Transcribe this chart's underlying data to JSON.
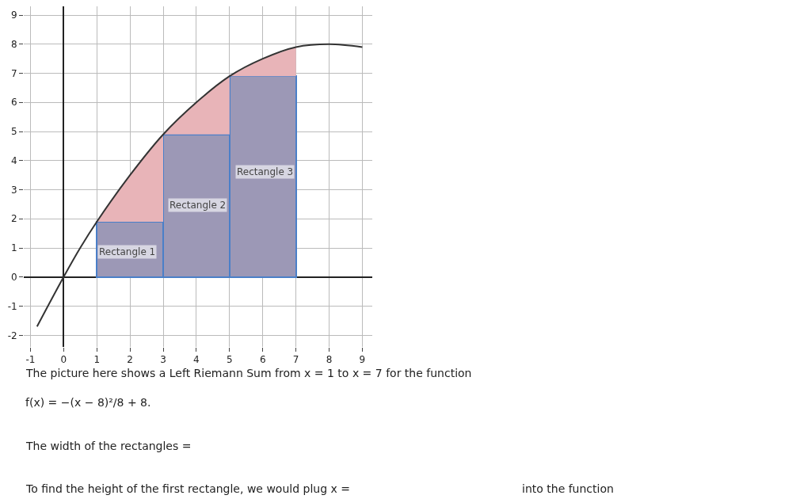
{
  "chart_data": {
    "type": "bar",
    "x": [
      2,
      4,
      6
    ],
    "series": [
      {
        "type": "area",
        "color": "#e8b4b8",
        "x": [
          1,
          1.5,
          2,
          2.5,
          3,
          3.5,
          4,
          4.5,
          5,
          5.5,
          6,
          6.5,
          7
        ],
        "values": [
          1.9,
          2.7,
          3.5,
          4.2,
          4.9,
          5.5,
          6,
          6.5,
          6.9,
          7.2,
          7.5,
          7.7,
          7.9
        ]
      },
      {
        "color": "#9c98b6",
        "values": [
          1.9,
          4.9,
          6.9
        ]
      },
      {
        "type": "line",
        "color": "#333333",
        "x": [
          -0.8,
          0,
          0.5,
          1,
          2,
          3,
          4,
          5,
          6,
          7,
          8,
          9
        ],
        "values": [
          -1.7,
          0,
          1,
          1.9,
          3.5,
          4.9,
          6,
          6.9,
          7.5,
          7.9,
          8,
          7.9
        ]
      }
    ],
    "xlim": [
      -1.2,
      9.3
    ],
    "ylim": [
      -2.4,
      9.3
    ],
    "xticks": [
      -1,
      0,
      1,
      2,
      3,
      4,
      5,
      6,
      7,
      8,
      9
    ],
    "yticks": [
      -2,
      -1,
      0,
      1,
      2,
      3,
      4,
      5,
      6,
      7,
      8,
      9
    ],
    "grid": true,
    "marker": "none",
    "line_style": "solid",
    "annotations": [
      "Rectangle 1",
      "Rectangle 2",
      "Rectangle 3",
      "The picture here shows a Left Riemann Sum from x = 1 to x = 7 for the function",
      "f(x) = −(x − 8)²/8 + 8.",
      "The width of the rectangles =",
      "To find the height of the first rectangle, we would plug x =",
      "into the function"
    ]
  }
}
